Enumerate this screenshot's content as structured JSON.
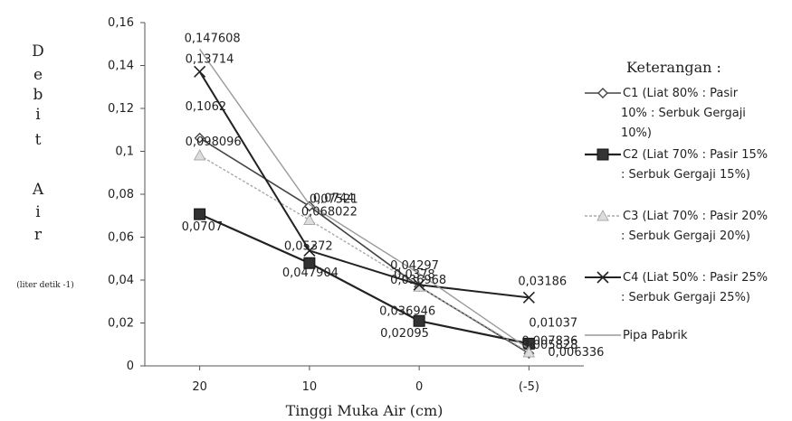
{
  "chart_data": {
    "type": "line",
    "title": "",
    "xlabel": "Tinggi Muka Air (cm)",
    "ylabel_letters": [
      "D",
      "e",
      "b",
      "i",
      "t",
      "A",
      "i",
      "r"
    ],
    "ylabel_unit": "(liter detik -1)",
    "categories": [
      "20",
      "10",
      "0",
      "(-5)"
    ],
    "ylim": [
      0,
      0.16
    ],
    "yticks": [
      {
        "v": 0,
        "label": "0"
      },
      {
        "v": 0.02,
        "label": "0,02"
      },
      {
        "v": 0.04,
        "label": "0,04"
      },
      {
        "v": 0.06,
        "label": "0,06"
      },
      {
        "v": 0.08,
        "label": "0,08"
      },
      {
        "v": 0.1,
        "label": "0,1"
      },
      {
        "v": 0.12,
        "label": "0,12"
      },
      {
        "v": 0.14,
        "label": "0,14"
      },
      {
        "v": 0.16,
        "label": "0,16"
      }
    ],
    "grid": false,
    "legend_position": "right",
    "legend_title": "Keterangan :",
    "series": [
      {
        "legend": [
          "C1 (Liat 80% : Pasir",
          "10% : Serbuk Gergaji",
          "10%)"
        ],
        "values": [
          0.1062,
          0.0744,
          0.036968,
          0.005828
        ],
        "labels": [
          "0,1062",
          "0,0744",
          "0,036968",
          "0,005828"
        ],
        "marker": "diamond",
        "color": "#444444",
        "width": 1.6,
        "dash": ""
      },
      {
        "legend": [
          "C2 (Liat 70% : Pasir 15%",
          ": Serbuk Gergaji 15%)"
        ],
        "values": [
          0.0707,
          0.047904,
          0.02095,
          0.01037
        ],
        "labels": [
          "0,0707",
          "0,047904",
          "0,02095",
          "0,01037"
        ],
        "marker": "square",
        "color": "#222222",
        "width": 2.2,
        "dash": ""
      },
      {
        "legend": [
          "C3 (Liat 70% : Pasir 20%",
          ": Serbuk Gergaji 20%)"
        ],
        "values": [
          0.098096,
          0.068022,
          0.036946,
          0.006336
        ],
        "labels": [
          "0,098096",
          "0,068022",
          "0,036946",
          "0,006336"
        ],
        "marker": "triangle",
        "color": "#aaaaaa",
        "width": 1.4,
        "dash": "3,2"
      },
      {
        "legend": [
          "C4 (Liat 50% : Pasir 25%",
          ": Serbuk Gergaji 25%)"
        ],
        "values": [
          0.13714,
          0.05372,
          0.0378,
          0.03186
        ],
        "labels": [
          "0,13714",
          "0,05372",
          "0,0378",
          "0,03186"
        ],
        "marker": "x",
        "color": "#222222",
        "width": 2.0,
        "dash": ""
      },
      {
        "legend": [
          "Pipa Pabrik"
        ],
        "values": [
          0.147608,
          0.07521,
          0.04297,
          0.007836
        ],
        "labels": [
          "0,147608",
          "0,07521",
          "0,04297",
          "0,007836"
        ],
        "marker": "none",
        "color": "#999999",
        "width": 1.4,
        "dash": ""
      }
    ]
  }
}
